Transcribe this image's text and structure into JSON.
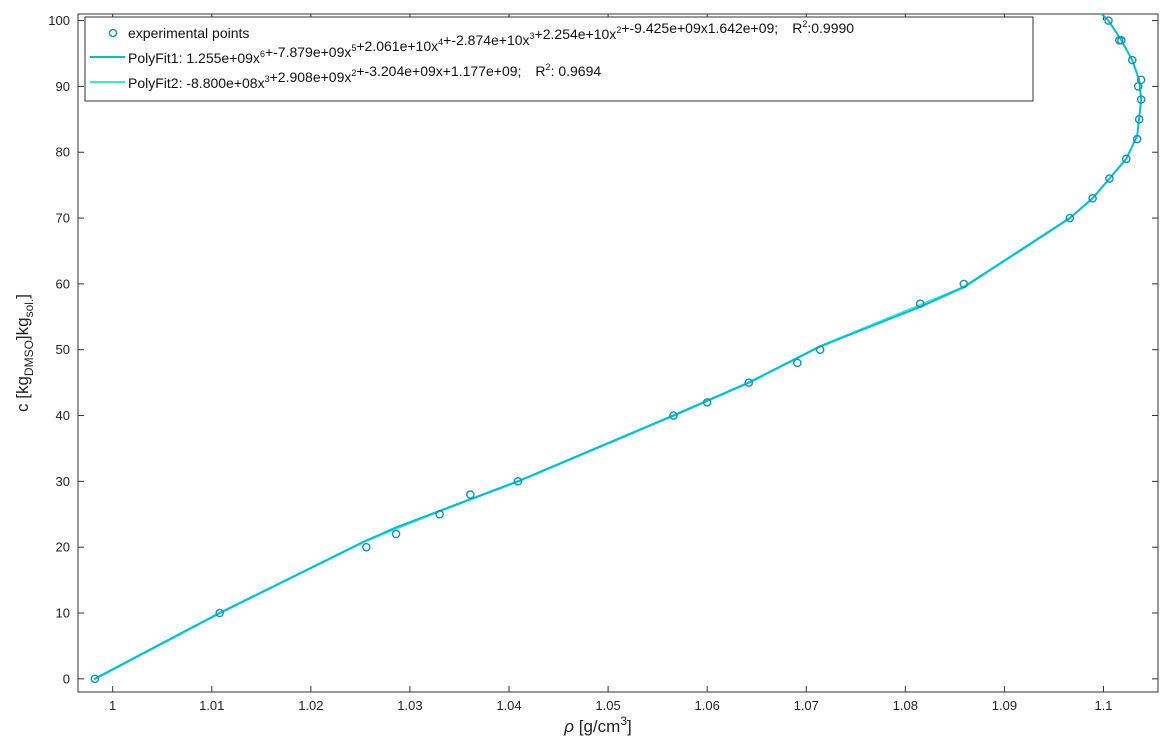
{
  "chart_data": {
    "type": "scatter",
    "xlabel": {
      "symbol": "ρ",
      "text": " [g/cm",
      "sup": "3",
      "close": "]"
    },
    "ylabel": {
      "pre": "c [kg",
      "sub1": "DMSO",
      "mid": "]kg",
      "sub2": "sol.",
      "close": "]"
    },
    "xlim": [
      0.9965,
      1.1055
    ],
    "ylim": [
      -2,
      101
    ],
    "x_ticks": [
      1,
      1.01,
      1.02,
      1.03,
      1.04,
      1.05,
      1.06,
      1.07,
      1.08,
      1.09,
      1.1
    ],
    "x_tick_labels": [
      "1",
      "1.01",
      "1.02",
      "1.03",
      "1.04",
      "1.05",
      "1.06",
      "1.07",
      "1.08",
      "1.09",
      "1.1"
    ],
    "y_ticks": [
      0,
      10,
      20,
      30,
      40,
      50,
      60,
      70,
      80,
      90,
      100
    ],
    "y_tick_labels": [
      "0",
      "10",
      "20",
      "30",
      "40",
      "50",
      "60",
      "70",
      "80",
      "90",
      "100"
    ],
    "legend_position": "top-left",
    "colors": {
      "points": "#1a8fb0",
      "fit1": "#00bcd4",
      "fit2": "#3ee8d8"
    },
    "series": [
      {
        "name": "experimental points",
        "kind": "markers",
        "x": [
          0.9982,
          1.0108,
          1.0256,
          1.0286,
          1.033,
          1.0361,
          1.0409,
          1.0566,
          1.06,
          1.0642,
          1.0691,
          1.0714,
          1.0815,
          1.0859,
          1.0966,
          1.0989,
          1.1006,
          1.1023,
          1.1034,
          1.1018,
          1.1029,
          1.1036,
          1.1035,
          1.1038,
          1.1038,
          1.1005,
          1.1016
        ],
        "y": [
          0,
          10,
          20,
          22,
          25,
          28,
          30,
          40,
          42,
          45,
          48,
          50,
          57,
          60,
          70,
          73,
          76,
          79,
          82,
          97,
          94,
          85,
          90,
          91,
          88,
          100,
          97
        ]
      },
      {
        "name_parts": {
          "label": "PolyFit1: ",
          "terms": [
            {
              "text": "1.255e+09x",
              "sup": "6"
            },
            {
              "text": "+-7.879e+09x",
              "sup": "5"
            },
            {
              "text": "+2.061e+10x",
              "sup": "4"
            },
            {
              "text": "+-2.874e+10x",
              "sup": "3"
            },
            {
              "text": "+2.254e+10x",
              "sup": "2"
            },
            {
              "text": "+-9.425e+09x1.642e+09;",
              "sup": ""
            }
          ],
          "r2_label": "R",
          "r2_sup": "2",
          "r2_value": ":0.9990"
        },
        "kind": "line",
        "x": [
          0.9982,
          1.0108,
          1.0256,
          1.0286,
          1.033,
          1.0409,
          1.0566,
          1.0642,
          1.0714,
          1.0815,
          1.0859,
          1.0966,
          1.0989,
          1.1006,
          1.1023,
          1.1034,
          1.1038,
          1.1036,
          1.1029,
          1.1018,
          1.1005,
          1.0998
        ],
        "y": [
          0,
          10,
          21,
          23,
          25.5,
          30,
          40,
          45,
          50.5,
          56.5,
          59.5,
          70,
          73,
          76,
          79,
          82.5,
          88,
          91,
          94,
          97,
          100,
          101
        ]
      },
      {
        "name_parts": {
          "label": "PolyFit2: ",
          "terms": [
            {
              "text": "-8.800e+08x",
              "sup": "3"
            },
            {
              "text": "+2.908e+09x",
              "sup": "2"
            },
            {
              "text": "+-3.204e+09x+1.177e+09;",
              "sup": ""
            }
          ],
          "r2_label": "R",
          "r2_sup": "2",
          "r2_value": ": 0.9694"
        },
        "kind": "line",
        "x": [
          0.9982,
          1.0108,
          1.0256,
          1.033,
          1.0409,
          1.0566,
          1.0642,
          1.0714,
          1.0859,
          1.0966
        ],
        "y": [
          0,
          10,
          21,
          25.5,
          30,
          40,
          45,
          50.5,
          59.5,
          70
        ]
      }
    ]
  }
}
